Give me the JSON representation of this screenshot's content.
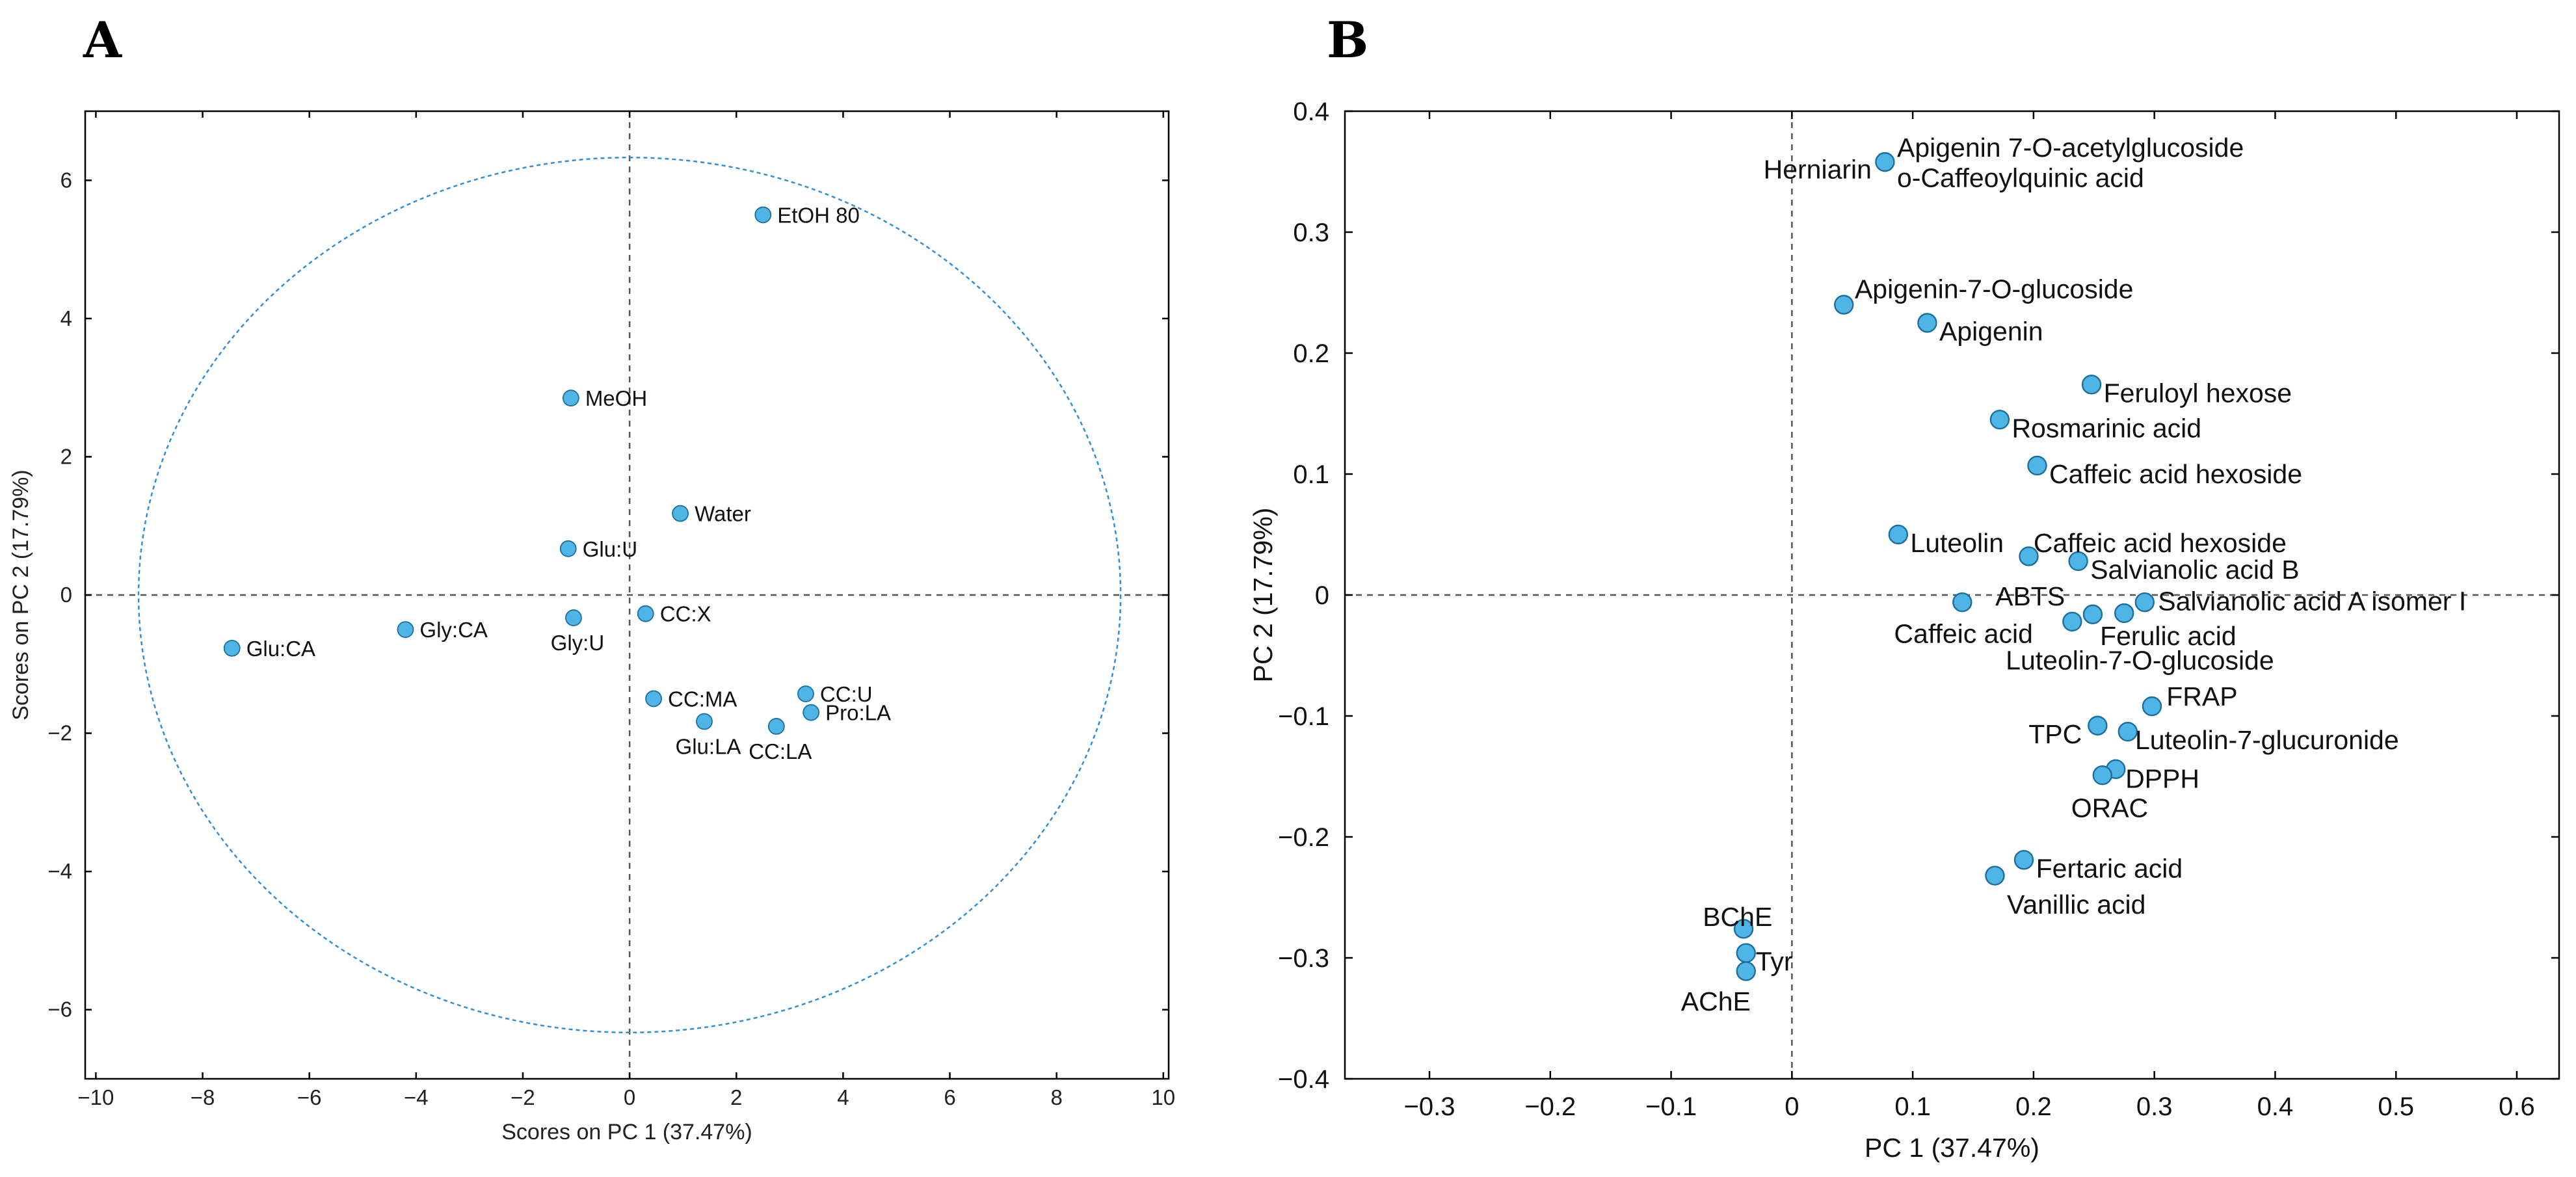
{
  "chart_data": [
    {
      "panel": "A",
      "type": "scatter",
      "title": "",
      "xlabel": "Scores on PC 1 (37.47%)",
      "ylabel": "Scores on PC 2 (17.79%)",
      "xlim": [
        -10.2,
        10.1
      ],
      "ylim": [
        -7.0,
        7.0
      ],
      "xticks": [
        -10,
        -8,
        -6,
        -4,
        -2,
        0,
        2,
        4,
        6,
        8,
        10
      ],
      "yticks": [
        -6,
        -4,
        -2,
        0,
        2,
        4,
        6
      ],
      "xtick_labels": [
        "−10",
        "−8",
        "−6",
        "−4",
        "−2",
        "0",
        "2",
        "4",
        "6",
        "8",
        "10"
      ],
      "ytick_labels": [
        "−6",
        "−4",
        "−2",
        "0",
        "2",
        "4",
        "6"
      ],
      "confidence_ellipse": {
        "cx": 0.0,
        "cy": 0.0,
        "rx": 9.2,
        "ry": 6.33
      },
      "grid": false,
      "points": [
        {
          "label": "EtOH 80",
          "x": 2.5,
          "y": 5.5,
          "label_pos": "right"
        },
        {
          "label": "MeOH",
          "x": -1.1,
          "y": 2.85,
          "label_pos": "right"
        },
        {
          "label": "Water",
          "x": 0.95,
          "y": 1.18,
          "label_pos": "right"
        },
        {
          "label": "Glu:U",
          "x": -1.15,
          "y": 0.67,
          "label_pos": "right"
        },
        {
          "label": "CC:X",
          "x": 0.3,
          "y": -0.27,
          "label_pos": "right"
        },
        {
          "label": "Gly:U",
          "x": -1.05,
          "y": -0.33,
          "label_pos": "below"
        },
        {
          "label": "Gly:CA",
          "x": -4.2,
          "y": -0.5,
          "label_pos": "right"
        },
        {
          "label": "Glu:CA",
          "x": -7.45,
          "y": -0.77,
          "label_pos": "right"
        },
        {
          "label": "CC:MA",
          "x": 0.45,
          "y": -1.5,
          "label_pos": "right"
        },
        {
          "label": "CC:U",
          "x": 3.3,
          "y": -1.43,
          "label_pos": "right"
        },
        {
          "label": "Pro:LA",
          "x": 3.4,
          "y": -1.7,
          "label_pos": "right"
        },
        {
          "label": "Glu:LA",
          "x": 1.4,
          "y": -1.83,
          "label_pos": "below"
        },
        {
          "label": "CC:LA",
          "x": 2.75,
          "y": -1.9,
          "label_pos": "below"
        }
      ]
    },
    {
      "panel": "B",
      "type": "scatter",
      "title": "",
      "xlabel": "PC 1 (37.47%)",
      "ylabel": "PC 2 (17.79%)",
      "xlim": [
        -0.37,
        0.635
      ],
      "ylim": [
        -0.4,
        0.4
      ],
      "xticks": [
        -0.3,
        -0.2,
        -0.1,
        0,
        0.1,
        0.2,
        0.3,
        0.4,
        0.5,
        0.6
      ],
      "yticks": [
        -0.4,
        -0.3,
        -0.2,
        -0.1,
        0,
        0.1,
        0.2,
        0.3,
        0.4
      ],
      "xtick_labels": [
        "−0.3",
        "−0.2",
        "−0.1",
        "0",
        "0.1",
        "0.2",
        "0.3",
        "0.4",
        "0.5",
        "0.6"
      ],
      "ytick_labels": [
        "−0.4",
        "−0.3",
        "−0.2",
        "−0.1",
        "0",
        "0.1",
        "0.2",
        "0.3",
        "0.4"
      ],
      "grid": false,
      "points": [
        {
          "x": 0.077,
          "y": 0.358
        },
        {
          "x": 0.043,
          "y": 0.24
        },
        {
          "x": 0.112,
          "y": 0.225
        },
        {
          "x": 0.248,
          "y": 0.174
        },
        {
          "x": 0.172,
          "y": 0.145
        },
        {
          "x": 0.203,
          "y": 0.107
        },
        {
          "x": 0.088,
          "y": 0.05
        },
        {
          "x": 0.196,
          "y": 0.032
        },
        {
          "x": 0.237,
          "y": 0.028
        },
        {
          "x": 0.141,
          "y": -0.006
        },
        {
          "x": 0.292,
          "y": -0.006
        },
        {
          "x": 0.249,
          "y": -0.016
        },
        {
          "x": 0.275,
          "y": -0.015
        },
        {
          "x": 0.232,
          "y": -0.022
        },
        {
          "x": 0.298,
          "y": -0.092
        },
        {
          "x": 0.253,
          "y": -0.108
        },
        {
          "x": 0.278,
          "y": -0.113
        },
        {
          "x": 0.268,
          "y": -0.144
        },
        {
          "x": 0.257,
          "y": -0.149
        },
        {
          "x": 0.192,
          "y": -0.219
        },
        {
          "x": 0.168,
          "y": -0.232
        },
        {
          "x": -0.04,
          "y": -0.276
        },
        {
          "x": -0.038,
          "y": -0.296
        },
        {
          "x": -0.038,
          "y": -0.311
        }
      ],
      "labels": [
        {
          "text": "Apigenin 7-O-acetylglucoside",
          "x": 0.087,
          "y": 0.37,
          "anchor": "start"
        },
        {
          "text": "Herniarin",
          "x": 0.066,
          "y": 0.352,
          "anchor": "end"
        },
        {
          "text": "o-Caffeoylquinic acid",
          "x": 0.087,
          "y": 0.345,
          "anchor": "start"
        },
        {
          "text": "Apigenin-7-O-glucoside",
          "x": 0.052,
          "y": 0.253,
          "anchor": "start"
        },
        {
          "text": "Apigenin",
          "x": 0.122,
          "y": 0.218,
          "anchor": "start"
        },
        {
          "text": "Feruloyl hexose",
          "x": 0.258,
          "y": 0.167,
          "anchor": "start"
        },
        {
          "text": "Rosmarinic acid",
          "x": 0.182,
          "y": 0.138,
          "anchor": "start"
        },
        {
          "text": "Caffeic acid hexoside",
          "x": 0.213,
          "y": 0.1,
          "anchor": "start"
        },
        {
          "text": "Luteolin",
          "x": 0.098,
          "y": 0.043,
          "anchor": "start"
        },
        {
          "text": "Caffeic acid hexoside",
          "x": 0.2,
          "y": 0.043,
          "anchor": "start"
        },
        {
          "text": "Salvianolic acid B",
          "x": 0.247,
          "y": 0.021,
          "anchor": "start"
        },
        {
          "text": "ABTS",
          "x": 0.226,
          "y": -0.001,
          "anchor": "end"
        },
        {
          "text": "Salvianolic acid A isomer I",
          "x": 0.303,
          "y": -0.005,
          "anchor": "start"
        },
        {
          "text": "Caffeic acid",
          "x": 0.142,
          "y": -0.032,
          "anchor": "middle"
        },
        {
          "text": "Ferulic acid",
          "x": 0.255,
          "y": -0.034,
          "anchor": "start"
        },
        {
          "text": "Luteolin-7-O-glucoside",
          "x": 0.177,
          "y": -0.054,
          "anchor": "start"
        },
        {
          "text": "FRAP",
          "x": 0.31,
          "y": -0.084,
          "anchor": "start"
        },
        {
          "text": "TPC",
          "x": 0.24,
          "y": -0.115,
          "anchor": "end"
        },
        {
          "text": "Luteolin-7-glucuronide",
          "x": 0.284,
          "y": -0.12,
          "anchor": "start"
        },
        {
          "text": "DPPH",
          "x": 0.276,
          "y": -0.152,
          "anchor": "start"
        },
        {
          "text": "ORAC",
          "x": 0.263,
          "y": -0.176,
          "anchor": "middle"
        },
        {
          "text": "Fertaric acid",
          "x": 0.202,
          "y": -0.226,
          "anchor": "start"
        },
        {
          "text": "Vanillic acid",
          "x": 0.178,
          "y": -0.256,
          "anchor": "start"
        },
        {
          "text": "BChE",
          "x": -0.045,
          "y": -0.266,
          "anchor": "middle"
        },
        {
          "text": "Tyr",
          "x": -0.03,
          "y": -0.303,
          "anchor": "start"
        },
        {
          "text": "AChE",
          "x": -0.063,
          "y": -0.336,
          "anchor": "middle"
        }
      ]
    }
  ]
}
